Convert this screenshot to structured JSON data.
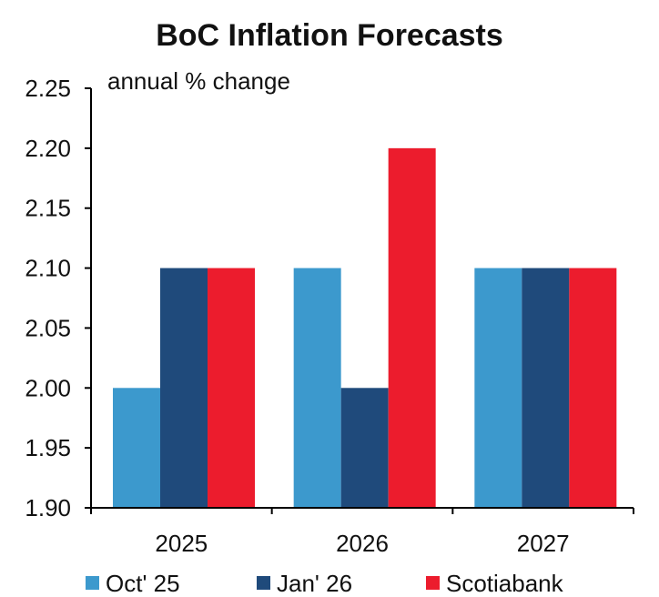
{
  "chart_data": {
    "type": "bar",
    "title": "BoC Inflation Forecasts",
    "unit_label": "annual % change",
    "categories": [
      "2025",
      "2026",
      "2027"
    ],
    "series": [
      {
        "name": "Oct' 25",
        "color": "#3c99cd",
        "values": [
          2.0,
          2.1,
          2.1
        ]
      },
      {
        "name": "Jan' 26",
        "color": "#1f4a7b",
        "values": [
          2.1,
          2.0,
          2.1
        ]
      },
      {
        "name": "Scotiabank",
        "color": "#ec1c2d",
        "values": [
          2.1,
          2.2,
          2.1
        ]
      }
    ],
    "ylim": [
      1.9,
      2.25
    ],
    "yticks": [
      "2.25",
      "2.20",
      "2.15",
      "2.10",
      "2.05",
      "2.00",
      "1.95",
      "1.90"
    ],
    "grid": false,
    "legend_position": "bottom"
  }
}
